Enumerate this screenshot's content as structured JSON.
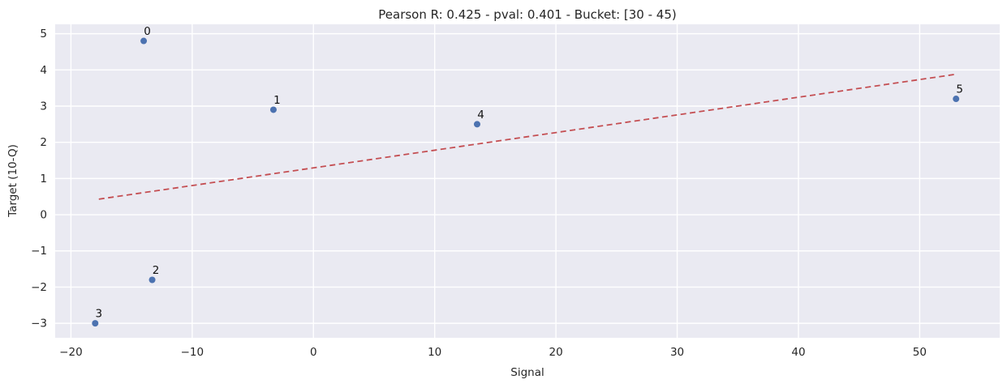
{
  "chart_data": {
    "type": "scatter",
    "title": "Pearson R: 0.425 - pval: 0.401 - Bucket: [30 - 45)",
    "stats": {
      "pearson_r": 0.425,
      "pval": 0.401,
      "bucket": "[30 - 45)"
    },
    "xlabel": "Signal",
    "ylabel": "Target (10-Q)",
    "xlim": [
      -21.3,
      56.6
    ],
    "ylim": [
      -3.4,
      5.26
    ],
    "grid": true,
    "legend": false,
    "x_ticks": [
      {
        "value": -20,
        "label": "−20"
      },
      {
        "value": -10,
        "label": "−10"
      },
      {
        "value": 0,
        "label": "0"
      },
      {
        "value": 10,
        "label": "10"
      },
      {
        "value": 20,
        "label": "20"
      },
      {
        "value": 30,
        "label": "30"
      },
      {
        "value": 40,
        "label": "40"
      },
      {
        "value": 50,
        "label": "50"
      }
    ],
    "y_ticks": [
      {
        "value": 5,
        "label": "5"
      },
      {
        "value": 4,
        "label": "4"
      },
      {
        "value": 3,
        "label": "3"
      },
      {
        "value": 2,
        "label": "2"
      },
      {
        "value": 1,
        "label": "1"
      },
      {
        "value": 0,
        "label": "0"
      },
      {
        "value": -1,
        "label": "−1"
      },
      {
        "value": -2,
        "label": "−2"
      },
      {
        "value": -3,
        "label": "−3"
      }
    ],
    "points": [
      {
        "label": "0",
        "x": -14.0,
        "y": 4.8
      },
      {
        "label": "1",
        "x": -3.3,
        "y": 2.9
      },
      {
        "label": "2",
        "x": -13.3,
        "y": -1.8
      },
      {
        "label": "3",
        "x": -18.0,
        "y": -3.0
      },
      {
        "label": "4",
        "x": 13.5,
        "y": 2.5
      },
      {
        "label": "5",
        "x": 53.0,
        "y": 3.2
      }
    ],
    "trendline": {
      "style": "dashed",
      "x1": -17.7,
      "y1": 0.43,
      "x2": 53.0,
      "y2": 3.88
    },
    "colors": {
      "point": "#4c72b0",
      "trendline": "#c44e52",
      "plot_background": "#eaeaf2",
      "grid": "#ffffff",
      "text": "#262626"
    }
  }
}
